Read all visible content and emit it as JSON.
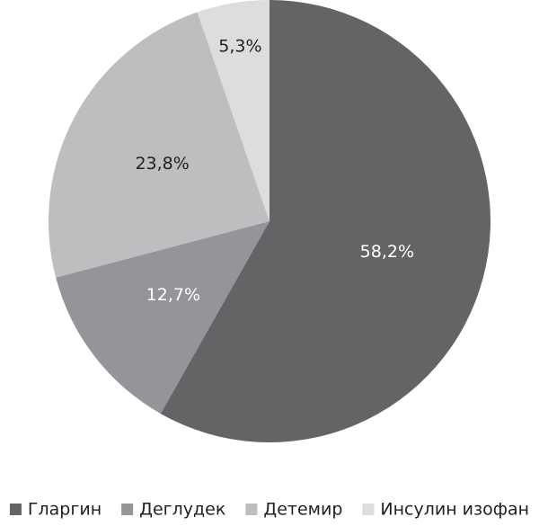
{
  "chart_data": {
    "type": "pie",
    "categories": [
      "Гларгин",
      "Деглудек",
      "Детемир",
      "Инсулин изофан"
    ],
    "values": [
      58.2,
      12.7,
      23.8,
      5.3
    ],
    "value_labels": [
      "58,2%",
      "12,7%",
      "23,8%",
      "5,3%"
    ],
    "colors": [
      "#636466",
      "#939598",
      "#bcbec0",
      "#dcdddf"
    ],
    "legend": "bottom"
  }
}
